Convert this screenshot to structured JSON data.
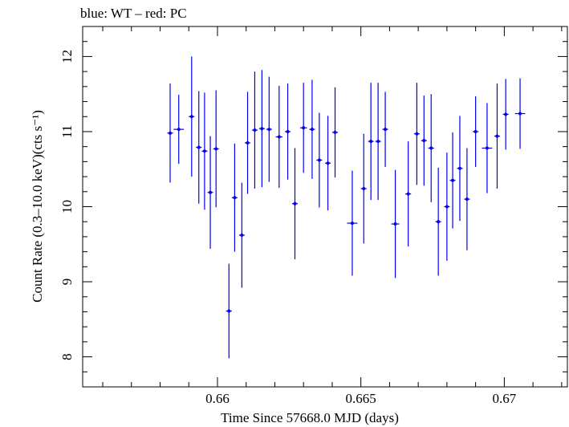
{
  "chart_data": {
    "type": "scatter",
    "title": "blue: WT – red: PC",
    "xlabel": "Time Since 57668.0 MJD (days)",
    "ylabel": "Count Rate (0.3–10.0 keV)(cts s⁻¹)",
    "xlim": [
      0.6553,
      0.6722
    ],
    "ylim": [
      7.6,
      12.4
    ],
    "x_ticks": [
      0.66,
      0.665,
      0.67
    ],
    "x_tick_labels": [
      "0.66",
      "0.665",
      "0.67"
    ],
    "y_ticks": [
      8,
      9,
      10,
      11,
      12
    ],
    "y_tick_labels": [
      "8",
      "9",
      "10",
      "11",
      "12"
    ],
    "grid": false,
    "series": [
      {
        "color": "#0000ee",
        "x": [
          0.65835,
          0.65865,
          0.6591,
          0.65935,
          0.65955,
          0.65975,
          0.65995,
          0.6604,
          0.6606,
          0.66085,
          0.66105,
          0.6613,
          0.66155,
          0.6618,
          0.66215,
          0.66245,
          0.6627,
          0.663,
          0.6633,
          0.66355,
          0.66385,
          0.6641,
          0.6647,
          0.6651,
          0.66535,
          0.6656,
          0.66585,
          0.6662,
          0.66665,
          0.66695,
          0.6672,
          0.66745,
          0.6677,
          0.668,
          0.6682,
          0.66845,
          0.6687,
          0.669,
          0.6694,
          0.66975,
          0.67005,
          0.67055
        ],
        "xerr": [
          0.0001,
          0.00018,
          0.0001,
          0.0001,
          0.0001,
          0.0001,
          0.0001,
          0.0001,
          0.0001,
          0.0001,
          0.0001,
          0.0001,
          0.0001,
          0.0001,
          0.00012,
          0.0001,
          0.0001,
          0.00012,
          0.0001,
          0.0001,
          0.0001,
          0.0001,
          0.00018,
          0.0001,
          0.0001,
          0.0001,
          0.0001,
          0.00014,
          0.0001,
          0.0001,
          0.0001,
          0.0001,
          0.0001,
          0.0001,
          0.0001,
          0.0001,
          0.0001,
          0.0001,
          0.00018,
          0.0001,
          0.0001,
          0.00018
        ],
        "y": [
          10.98,
          11.03,
          11.2,
          10.79,
          10.74,
          10.19,
          10.77,
          8.61,
          10.12,
          9.62,
          10.85,
          11.02,
          11.04,
          11.03,
          10.93,
          11.0,
          10.04,
          11.05,
          11.03,
          10.62,
          10.58,
          10.99,
          9.78,
          10.24,
          10.87,
          10.87,
          11.03,
          9.77,
          10.17,
          10.97,
          10.88,
          10.78,
          9.8,
          10.0,
          10.35,
          10.51,
          10.1,
          11.0,
          10.78,
          10.94,
          11.23,
          11.24
        ],
        "yerr": [
          0.66,
          0.46,
          0.8,
          0.75,
          0.78,
          0.75,
          0.78,
          0.63,
          0.72,
          0.7,
          0.68,
          0.78,
          0.78,
          0.7,
          0.68,
          0.64,
          0.74,
          0.6,
          0.66,
          0.63,
          0.63,
          0.6,
          0.7,
          0.73,
          0.78,
          0.78,
          0.5,
          0.72,
          0.7,
          0.68,
          0.6,
          0.72,
          0.72,
          0.72,
          0.64,
          0.7,
          0.68,
          0.47,
          0.6,
          0.7,
          0.47,
          0.47
        ]
      }
    ]
  }
}
